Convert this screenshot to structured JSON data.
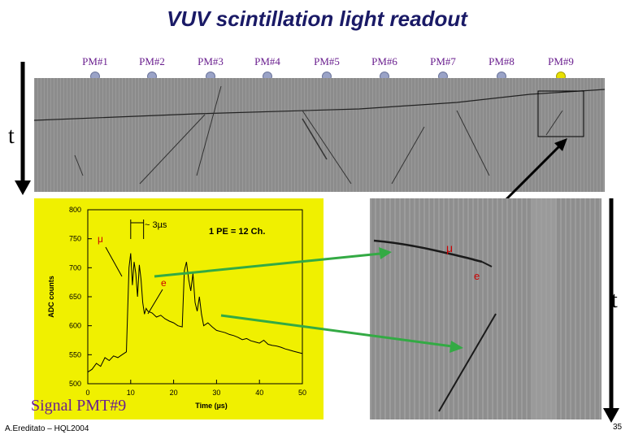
{
  "title": "VUV scintillation light readout",
  "pm_labels": [
    "PM#1",
    "PM#2",
    "PM#3",
    "PM#4",
    "PM#5",
    "PM#6",
    "PM#7",
    "PM#8",
    "PM#9"
  ],
  "time_axis_label": "t",
  "signal_label": "Signal PMT#9",
  "author": "A.Ereditato – HQL2004",
  "page_number": "35",
  "zoom_labels": {
    "muon": "μ",
    "electron": "e"
  },
  "colors": {
    "title": "#1a1a66",
    "pm_label": "#6a1f8f",
    "plot_bg": "#f0f000",
    "annotation_red": "#cc0000",
    "arrow_green": "#33aa44",
    "highlight_pm": "#e8e000"
  },
  "chart_data": {
    "type": "line",
    "title": "",
    "xlabel": "Time (µs)",
    "ylabel": "ADC counts",
    "xlim": [
      0,
      50
    ],
    "ylim": [
      500,
      800
    ],
    "x_ticks": [
      0,
      10,
      20,
      30,
      40,
      50
    ],
    "y_ticks": [
      500,
      550,
      600,
      650,
      700,
      750,
      800
    ],
    "annotations": {
      "pe": "1 PE = 12 Ch.",
      "interval": "~ 3µs",
      "muon": "μ",
      "electron": "e"
    },
    "series": [
      {
        "x": [
          0,
          1,
          2,
          3,
          4,
          5,
          6,
          7,
          8,
          9,
          9.6,
          10,
          10.4,
          10.8,
          11.2,
          11.6,
          12,
          12.4,
          12.8,
          13.2,
          13.6,
          14,
          15,
          16,
          17,
          18,
          19,
          20,
          21,
          22,
          22.5,
          23,
          23.5,
          24,
          24.5,
          25,
          25.5,
          26,
          26.5,
          27,
          28,
          29,
          30,
          31,
          32,
          33,
          34,
          35,
          36,
          37,
          38,
          39,
          40,
          41,
          42,
          43,
          44,
          45,
          46,
          47,
          48,
          49,
          50
        ],
        "values": [
          520,
          525,
          535,
          530,
          545,
          540,
          548,
          545,
          550,
          555,
          700,
          725,
          670,
          710,
          690,
          650,
          705,
          680,
          640,
          620,
          630,
          625,
          622,
          615,
          618,
          612,
          608,
          605,
          600,
          598,
          695,
          710,
          680,
          660,
          690,
          640,
          625,
          650,
          620,
          600,
          605,
          598,
          592,
          590,
          588,
          585,
          583,
          580,
          576,
          578,
          574,
          572,
          570,
          575,
          568,
          566,
          565,
          563,
          560,
          558,
          556,
          554,
          552
        ]
      }
    ]
  }
}
